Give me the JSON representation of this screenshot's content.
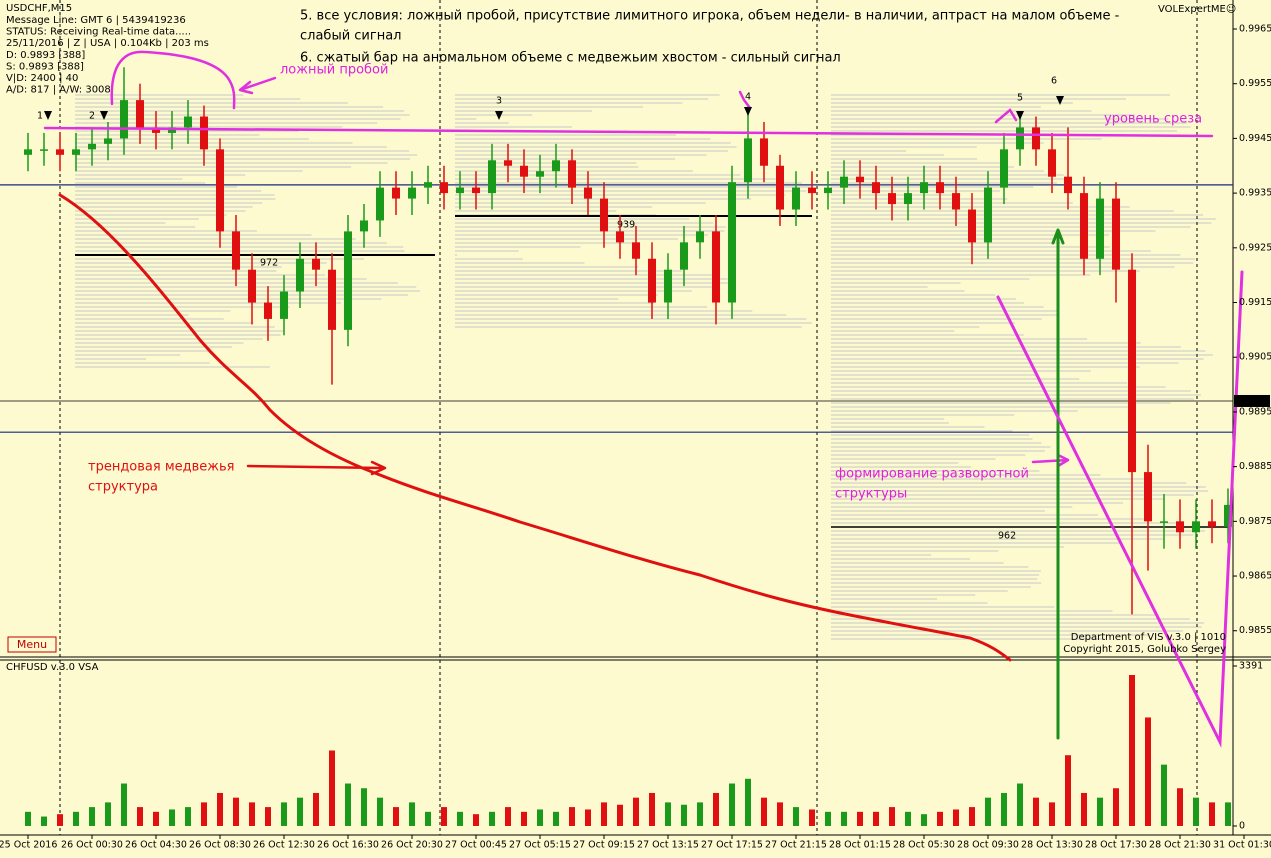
{
  "chart_data": {
    "type": "candlestick",
    "title": "USDCHF,M15",
    "info_lines": [
      "Message Line: GMT 6 | 5439419236",
      "STATUS:  Receiving Real-time data.....",
      "25/11/2016 | Z | USA | 0.104Kb | 203 ms",
      "D: 0.9893  [388]",
      "S: 0.9893  [388]",
      "V|D: 2400 | 40",
      "A/D: 817 | A/W: 3008"
    ],
    "brand": "VOLExpertME☺",
    "notes": [
      "5. все условия: ложный пробой, присутствие лимитного игрока, объем недели- в наличии, аптраст на малом объеме -",
      "слабый сигнал",
      "6. сжатый бар на аномальном объеме с медвежьим хвостом - сильный сигнал"
    ],
    "annotations": [
      "ложный пробой",
      "уровень среза",
      "трендовая медвежья",
      "структура",
      "формирование разворотной",
      "структуры"
    ],
    "signal_markers": [
      "1",
      "2",
      "3",
      "4",
      "5",
      "6"
    ],
    "profile_labels": [
      972,
      939,
      962
    ],
    "copyright": [
      "Department of VIS  v.3.0 | 1010",
      "Copyright 2015, Golubko Sergey"
    ],
    "menu": "Menu",
    "up_color": "#1a9a1a",
    "down_color": "#e01010",
    "open": [
      0.9942,
      0.9943,
      0.9943,
      0.9942,
      0.9943,
      0.9944,
      0.9945,
      0.9952,
      0.9947,
      0.9946,
      0.9947,
      0.9949,
      0.9943,
      0.9928,
      0.9921,
      0.9915,
      0.9912,
      0.9917,
      0.9923,
      0.9921,
      0.991,
      0.9928,
      0.993,
      0.9936,
      0.9934,
      0.9936,
      0.9937,
      0.9935,
      0.9936,
      0.9935,
      0.9941,
      0.994,
      0.9938,
      0.9939,
      0.9941,
      0.9936,
      0.9934,
      0.9928,
      0.9926,
      0.9923,
      0.9915,
      0.9921,
      0.9926,
      0.9928,
      0.9915,
      0.9937,
      0.9945,
      0.994,
      0.9932,
      0.9936,
      0.9935,
      0.9936,
      0.9938,
      0.9937,
      0.9935,
      0.9933,
      0.9935,
      0.9937,
      0.9935,
      0.9932,
      0.9926,
      0.9936,
      0.9943,
      0.9947,
      0.9943,
      0.9938,
      0.9935,
      0.9923,
      0.9934,
      0.9921,
      0.9884,
      0.9875,
      0.9875,
      0.9873,
      0.9875,
      0.9874
    ],
    "high": [
      0.9946,
      0.9946,
      0.9946,
      0.9946,
      0.9947,
      0.9948,
      0.9958,
      0.9955,
      0.995,
      0.995,
      0.9952,
      0.9951,
      0.9945,
      0.9931,
      0.9924,
      0.9918,
      0.992,
      0.9926,
      0.9926,
      0.9924,
      0.9931,
      0.9933,
      0.9939,
      0.9939,
      0.9939,
      0.994,
      0.994,
      0.9939,
      0.9939,
      0.9944,
      0.9944,
      0.9943,
      0.9942,
      0.9944,
      0.9943,
      0.9939,
      0.9937,
      0.9931,
      0.9929,
      0.9926,
      0.9924,
      0.9929,
      0.9931,
      0.9931,
      0.994,
      0.9951,
      0.9948,
      0.9942,
      0.9939,
      0.9939,
      0.9939,
      0.9941,
      0.9941,
      0.994,
      0.9938,
      0.9938,
      0.994,
      0.994,
      0.9938,
      0.9935,
      0.9939,
      0.9946,
      0.9949,
      0.9949,
      0.9946,
      0.9947,
      0.9938,
      0.9937,
      0.9937,
      0.9924,
      0.9889,
      0.988,
      0.9879,
      0.9879,
      0.9879,
      0.9881
    ],
    "low": [
      0.9939,
      0.994,
      0.9939,
      0.9939,
      0.994,
      0.9941,
      0.9942,
      0.9944,
      0.9943,
      0.9943,
      0.9944,
      0.994,
      0.9925,
      0.9918,
      0.9911,
      0.9908,
      0.9909,
      0.9914,
      0.9918,
      0.99,
      0.9907,
      0.9925,
      0.9927,
      0.9931,
      0.9931,
      0.9933,
      0.9932,
      0.9932,
      0.9932,
      0.9932,
      0.9937,
      0.9935,
      0.9935,
      0.9936,
      0.9933,
      0.9931,
      0.9925,
      0.9923,
      0.992,
      0.9912,
      0.9912,
      0.9918,
      0.9923,
      0.9911,
      0.9912,
      0.9934,
      0.9937,
      0.9929,
      0.9929,
      0.9932,
      0.9932,
      0.9933,
      0.9934,
      0.9932,
      0.993,
      0.993,
      0.9932,
      0.9932,
      0.9929,
      0.9922,
      0.9923,
      0.9933,
      0.994,
      0.994,
      0.9935,
      0.9932,
      0.992,
      0.992,
      0.9915,
      0.9858,
      0.9866,
      0.987,
      0.987,
      0.987,
      0.9871,
      0.9871
    ],
    "close": [
      0.9943,
      0.9943,
      0.9942,
      0.9943,
      0.9944,
      0.9945,
      0.9952,
      0.9947,
      0.9946,
      0.9947,
      0.9949,
      0.9943,
      0.9928,
      0.9921,
      0.9915,
      0.9912,
      0.9917,
      0.9923,
      0.9921,
      0.991,
      0.9928,
      0.993,
      0.9936,
      0.9934,
      0.9936,
      0.9937,
      0.9935,
      0.9936,
      0.9935,
      0.9941,
      0.994,
      0.9938,
      0.9939,
      0.9941,
      0.9936,
      0.9934,
      0.9928,
      0.9926,
      0.9923,
      0.9915,
      0.9921,
      0.9926,
      0.9928,
      0.9915,
      0.9937,
      0.9945,
      0.994,
      0.9932,
      0.9936,
      0.9935,
      0.9936,
      0.9938,
      0.9937,
      0.9935,
      0.9933,
      0.9935,
      0.9937,
      0.9935,
      0.9932,
      0.9926,
      0.9936,
      0.9943,
      0.9947,
      0.9943,
      0.9938,
      0.9935,
      0.9923,
      0.9934,
      0.9921,
      0.9884,
      0.9875,
      0.9875,
      0.9873,
      0.9875,
      0.9874,
      0.9878
    ],
    "xlim": [
      -1.625,
      75.25
    ],
    "xticks": [
      {
        "value": 0,
        "label": "25 Oct 2016"
      },
      {
        "value": 4,
        "label": "26 Oct 00:30"
      },
      {
        "value": 8,
        "label": "26 Oct 04:30"
      },
      {
        "value": 12,
        "label": "26 Oct 08:30"
      },
      {
        "value": 16,
        "label": "26 Oct 12:30"
      },
      {
        "value": 20,
        "label": "26 Oct 16:30"
      },
      {
        "value": 24,
        "label": "26 Oct 20:30"
      },
      {
        "value": 28,
        "label": "27 Oct 00:45"
      },
      {
        "value": 32,
        "label": "27 Oct 05:15"
      },
      {
        "value": 36,
        "label": "27 Oct 09:15"
      },
      {
        "value": 40,
        "label": "27 Oct 13:15"
      },
      {
        "value": 44,
        "label": "27 Oct 17:15"
      },
      {
        "value": 48,
        "label": "27 Oct 21:15"
      },
      {
        "value": 52,
        "label": "28 Oct 01:15"
      },
      {
        "value": 56,
        "label": "28 Oct 05:30"
      },
      {
        "value": 60,
        "label": "28 Oct 09:30"
      },
      {
        "value": 64,
        "label": "28 Oct 13:30"
      },
      {
        "value": 68,
        "label": "28 Oct 17:30"
      },
      {
        "value": 72,
        "label": "28 Oct 21:30"
      },
      {
        "value": 76,
        "label": "31 Oct 01:30"
      }
    ],
    "ylim": [
      0.98502,
      0.99703
    ],
    "yticks": [
      0.9965,
      0.9955,
      0.9945,
      0.9935,
      0.9925,
      0.9915,
      0.9905,
      0.9895,
      0.9885,
      0.9875,
      0.9865,
      0.9855
    ],
    "current_price": 0.9897,
    "levels": [
      0.99365,
      0.98913
    ],
    "volume": {
      "title": "CHFUSD v.3.0 VSA",
      "values": [
        300,
        200,
        250,
        300,
        400,
        500,
        900,
        400,
        300,
        350,
        400,
        500,
        700,
        600,
        500,
        400,
        500,
        600,
        700,
        1600,
        900,
        800,
        600,
        400,
        500,
        300,
        400,
        300,
        250,
        300,
        400,
        300,
        350,
        300,
        400,
        350,
        500,
        450,
        600,
        700,
        500,
        450,
        500,
        700,
        900,
        1000,
        600,
        500,
        400,
        350,
        300,
        300,
        300,
        300,
        400,
        300,
        250,
        300,
        350,
        400,
        600,
        700,
        900,
        600,
        500,
        1500,
        700,
        600,
        800,
        3200,
        2300,
        1300,
        800,
        600,
        500,
        500
      ],
      "ylim": [
        -170,
        3518
      ],
      "yticks": [
        3391,
        0
      ]
    }
  }
}
